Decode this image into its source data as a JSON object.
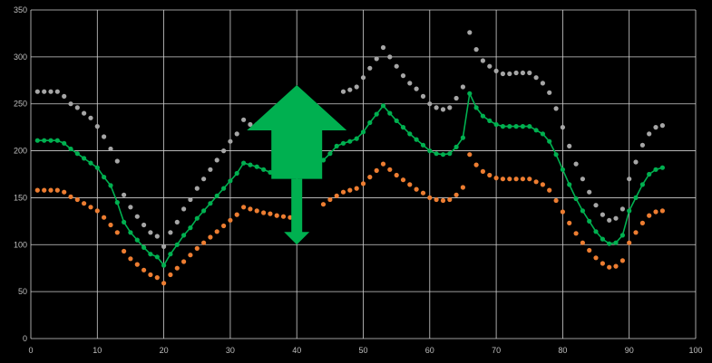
{
  "chart_data": {
    "type": "line",
    "title": "",
    "xlabel": "",
    "ylabel": "",
    "xlim": [
      0,
      100
    ],
    "ylim": [
      0,
      350
    ],
    "x_ticks": [
      0,
      10,
      20,
      30,
      40,
      50,
      60,
      70,
      80,
      90,
      100
    ],
    "y_ticks": [
      0,
      50,
      100,
      150,
      200,
      250,
      300,
      350
    ],
    "grid": true,
    "legend": "none",
    "colors": {
      "background": "#000000",
      "grid": "#d0d0d0",
      "upper": "#a6a6a6",
      "middle": "#00b050",
      "lower": "#ed7d31",
      "arrow": "#00b050"
    },
    "series": [
      {
        "style": "markers",
        "color": "#a6a6a6",
        "points": [
          [
            1,
            263
          ],
          [
            2,
            263
          ],
          [
            3,
            263
          ],
          [
            4,
            263
          ],
          [
            5,
            258
          ],
          [
            6,
            250
          ],
          [
            7,
            246
          ],
          [
            8,
            240
          ],
          [
            9,
            235
          ],
          [
            10,
            226
          ],
          [
            11,
            215
          ],
          [
            12,
            202
          ],
          [
            13,
            189
          ],
          [
            14,
            153
          ],
          [
            15,
            140
          ],
          [
            16,
            130
          ],
          [
            17,
            121
          ],
          [
            18,
            113
          ],
          [
            19,
            109
          ],
          [
            20,
            98
          ],
          [
            21,
            113
          ],
          [
            22,
            124
          ],
          [
            23,
            138
          ],
          [
            24,
            148
          ],
          [
            25,
            160
          ],
          [
            26,
            170
          ],
          [
            27,
            180
          ],
          [
            28,
            190
          ],
          [
            29,
            200
          ],
          [
            30,
            210
          ],
          [
            31,
            218
          ],
          [
            32,
            233
          ],
          [
            33,
            228
          ],
          [
            34,
            228
          ],
          [
            35,
            225
          ],
          [
            47,
            263
          ],
          [
            48,
            265
          ],
          [
            49,
            268
          ],
          [
            50,
            278
          ],
          [
            51,
            288
          ],
          [
            52,
            298
          ],
          [
            53,
            310
          ],
          [
            54,
            300
          ],
          [
            55,
            290
          ],
          [
            56,
            280
          ],
          [
            57,
            272
          ],
          [
            58,
            266
          ],
          [
            59,
            258
          ],
          [
            60,
            250
          ],
          [
            61,
            246
          ],
          [
            62,
            244
          ],
          [
            63,
            246
          ],
          [
            64,
            256
          ],
          [
            65,
            268
          ],
          [
            66,
            326
          ],
          [
            67,
            308
          ],
          [
            68,
            296
          ],
          [
            69,
            290
          ],
          [
            70,
            285
          ],
          [
            71,
            282
          ],
          [
            72,
            282
          ],
          [
            73,
            283
          ],
          [
            74,
            283
          ],
          [
            75,
            283
          ],
          [
            76,
            278
          ],
          [
            77,
            272
          ],
          [
            78,
            262
          ],
          [
            79,
            245
          ],
          [
            80,
            225
          ],
          [
            81,
            205
          ],
          [
            82,
            186
          ],
          [
            83,
            170
          ],
          [
            84,
            156
          ],
          [
            85,
            142
          ],
          [
            86,
            132
          ],
          [
            87,
            126
          ],
          [
            88,
            128
          ],
          [
            89,
            138
          ],
          [
            90,
            170
          ],
          [
            91,
            188
          ],
          [
            92,
            206
          ],
          [
            93,
            218
          ],
          [
            94,
            225
          ],
          [
            95,
            227
          ]
        ]
      },
      {
        "style": "line+markers",
        "color": "#00b050",
        "points": [
          [
            1,
            211
          ],
          [
            2,
            211
          ],
          [
            3,
            211
          ],
          [
            4,
            211
          ],
          [
            5,
            208
          ],
          [
            6,
            202
          ],
          [
            7,
            197
          ],
          [
            8,
            192
          ],
          [
            9,
            187
          ],
          [
            10,
            182
          ],
          [
            11,
            172
          ],
          [
            12,
            163
          ],
          [
            13,
            145
          ],
          [
            14,
            124
          ],
          [
            15,
            113
          ],
          [
            16,
            105
          ],
          [
            17,
            97
          ],
          [
            18,
            90
          ],
          [
            19,
            87
          ],
          [
            20,
            78
          ],
          [
            21,
            90
          ],
          [
            22,
            100
          ],
          [
            23,
            110
          ],
          [
            24,
            118
          ],
          [
            25,
            128
          ],
          [
            26,
            136
          ],
          [
            27,
            144
          ],
          [
            28,
            152
          ],
          [
            29,
            160
          ],
          [
            30,
            168
          ],
          [
            31,
            176
          ],
          [
            32,
            187
          ],
          [
            33,
            185
          ],
          [
            34,
            183
          ],
          [
            35,
            180
          ],
          [
            36,
            177
          ],
          [
            44,
            190
          ],
          [
            45,
            197
          ],
          [
            46,
            205
          ],
          [
            47,
            208
          ],
          [
            48,
            210
          ],
          [
            49,
            213
          ],
          [
            50,
            220
          ],
          [
            51,
            230
          ],
          [
            52,
            239
          ],
          [
            53,
            248
          ],
          [
            54,
            240
          ],
          [
            55,
            232
          ],
          [
            56,
            225
          ],
          [
            57,
            218
          ],
          [
            58,
            212
          ],
          [
            59,
            206
          ],
          [
            60,
            200
          ],
          [
            61,
            197
          ],
          [
            62,
            196
          ],
          [
            63,
            197
          ],
          [
            64,
            204
          ],
          [
            65,
            214
          ],
          [
            66,
            261
          ],
          [
            67,
            246
          ],
          [
            68,
            237
          ],
          [
            69,
            232
          ],
          [
            70,
            228
          ],
          [
            71,
            226
          ],
          [
            72,
            226
          ],
          [
            73,
            226
          ],
          [
            74,
            226
          ],
          [
            75,
            226
          ],
          [
            76,
            222
          ],
          [
            77,
            218
          ],
          [
            78,
            210
          ],
          [
            79,
            196
          ],
          [
            80,
            180
          ],
          [
            81,
            164
          ],
          [
            82,
            149
          ],
          [
            83,
            136
          ],
          [
            84,
            125
          ],
          [
            85,
            114
          ],
          [
            86,
            106
          ],
          [
            87,
            101
          ],
          [
            88,
            102
          ],
          [
            89,
            110
          ],
          [
            90,
            136
          ],
          [
            91,
            150
          ],
          [
            92,
            164
          ],
          [
            93,
            175
          ],
          [
            94,
            180
          ],
          [
            95,
            182
          ]
        ]
      },
      {
        "style": "markers",
        "color": "#ed7d31",
        "points": [
          [
            1,
            158
          ],
          [
            2,
            158
          ],
          [
            3,
            158
          ],
          [
            4,
            158
          ],
          [
            5,
            156
          ],
          [
            6,
            151
          ],
          [
            7,
            148
          ],
          [
            8,
            144
          ],
          [
            9,
            140
          ],
          [
            10,
            136
          ],
          [
            11,
            129
          ],
          [
            12,
            121
          ],
          [
            13,
            113
          ],
          [
            14,
            93
          ],
          [
            15,
            85
          ],
          [
            16,
            79
          ],
          [
            17,
            73
          ],
          [
            18,
            68
          ],
          [
            19,
            65
          ],
          [
            20,
            59
          ],
          [
            21,
            68
          ],
          [
            22,
            75
          ],
          [
            23,
            82
          ],
          [
            24,
            89
          ],
          [
            25,
            96
          ],
          [
            26,
            102
          ],
          [
            27,
            108
          ],
          [
            28,
            114
          ],
          [
            29,
            120
          ],
          [
            30,
            126
          ],
          [
            31,
            132
          ],
          [
            32,
            140
          ],
          [
            33,
            138
          ],
          [
            34,
            136
          ],
          [
            35,
            134
          ],
          [
            36,
            133
          ],
          [
            37,
            131
          ],
          [
            38,
            130
          ],
          [
            39,
            129
          ],
          [
            40,
            129
          ],
          [
            44,
            143
          ],
          [
            45,
            148
          ],
          [
            46,
            152
          ],
          [
            47,
            156
          ],
          [
            48,
            158
          ],
          [
            49,
            160
          ],
          [
            50,
            165
          ],
          [
            51,
            172
          ],
          [
            52,
            179
          ],
          [
            53,
            186
          ],
          [
            54,
            180
          ],
          [
            55,
            174
          ],
          [
            56,
            169
          ],
          [
            57,
            164
          ],
          [
            58,
            159
          ],
          [
            59,
            155
          ],
          [
            60,
            150
          ],
          [
            61,
            148
          ],
          [
            62,
            147
          ],
          [
            63,
            148
          ],
          [
            64,
            153
          ],
          [
            65,
            161
          ],
          [
            66,
            196
          ],
          [
            67,
            185
          ],
          [
            68,
            178
          ],
          [
            69,
            174
          ],
          [
            70,
            171
          ],
          [
            71,
            170
          ],
          [
            72,
            170
          ],
          [
            73,
            170
          ],
          [
            74,
            170
          ],
          [
            75,
            170
          ],
          [
            76,
            167
          ],
          [
            77,
            164
          ],
          [
            78,
            158
          ],
          [
            79,
            147
          ],
          [
            80,
            135
          ],
          [
            81,
            123
          ],
          [
            82,
            112
          ],
          [
            83,
            102
          ],
          [
            84,
            94
          ],
          [
            85,
            86
          ],
          [
            86,
            80
          ],
          [
            87,
            76
          ],
          [
            88,
            77
          ],
          [
            89,
            83
          ],
          [
            90,
            102
          ],
          [
            91,
            113
          ],
          [
            92,
            123
          ],
          [
            93,
            131
          ],
          [
            94,
            135
          ],
          [
            95,
            136
          ]
        ]
      }
    ],
    "annotations": [
      {
        "type": "double-arrow",
        "x": 40,
        "up_from": 170,
        "up_to": 270,
        "down_from": 170,
        "down_to": 100,
        "color": "#00b050"
      }
    ]
  }
}
